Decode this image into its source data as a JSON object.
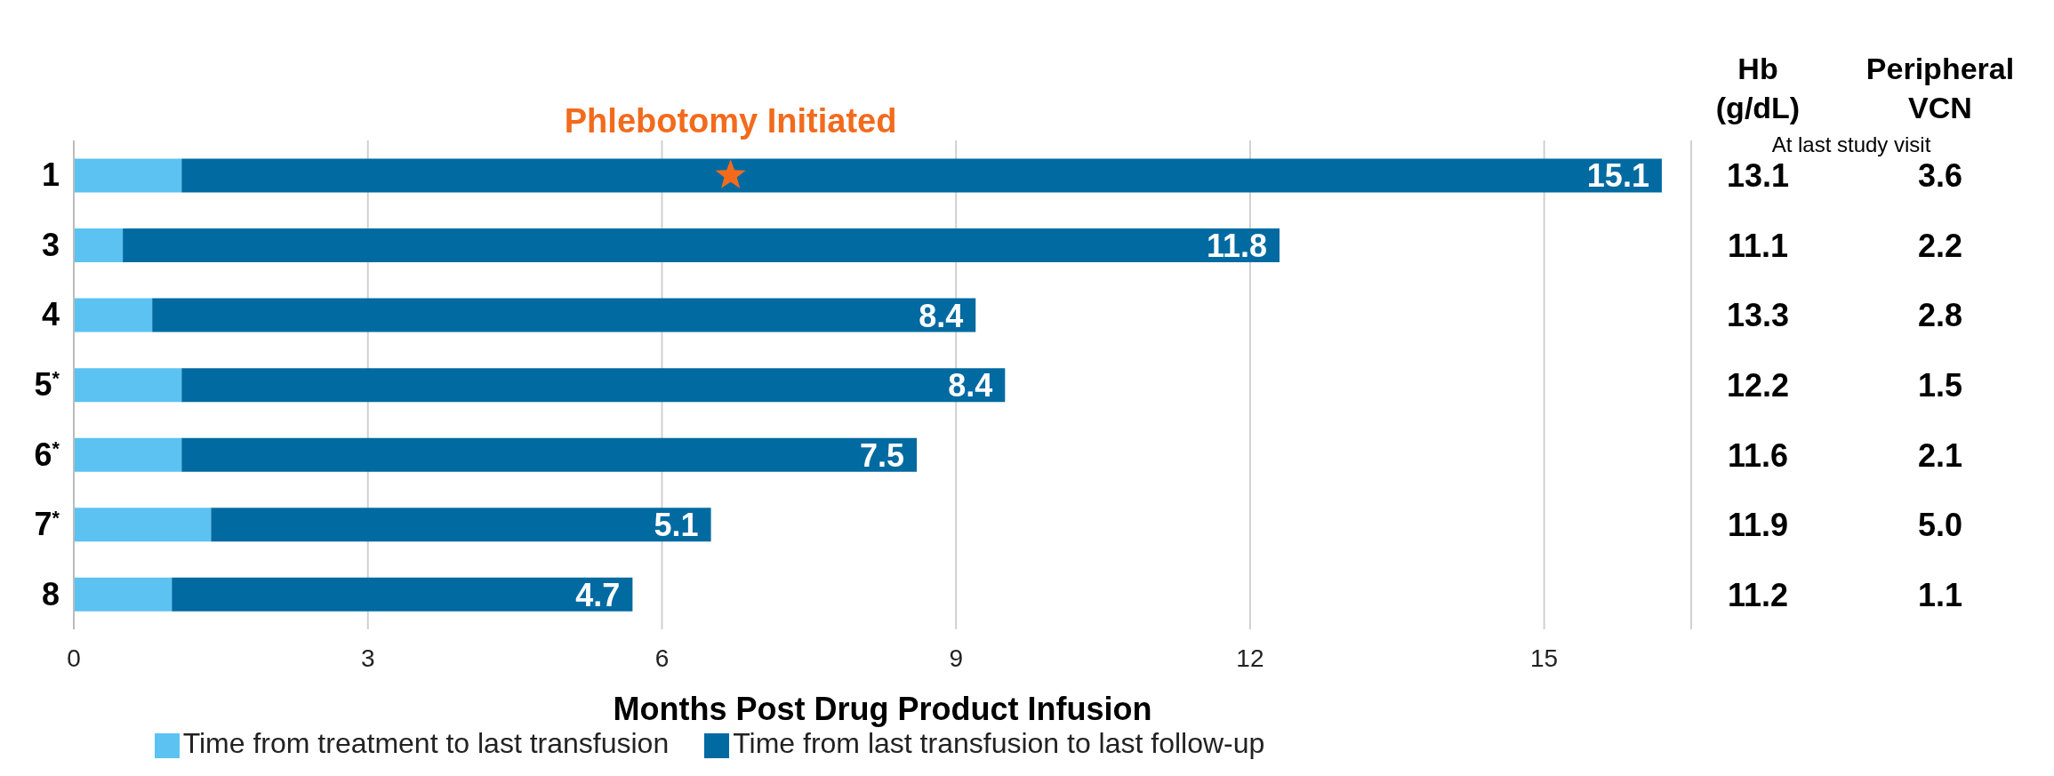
{
  "chart_data": {
    "type": "bar",
    "orientation": "horizontal",
    "stacked": true,
    "categories": [
      "1",
      "3",
      "4",
      "5$^{*}$",
      "6$^{*}$",
      "7$^{*}$",
      "8"
    ],
    "series": [
      {
        "name": "Time from treatment to last transfusion",
        "color": "#5bc2f2",
        "values": [
          1.1,
          0.5,
          0.8,
          1.1,
          1.1,
          1.4,
          1.0
        ]
      },
      {
        "name": "Time from last transfusion to last follow-up",
        "color": "#006aa1",
        "values": [
          15.1,
          11.8,
          8.4,
          8.4,
          7.5,
          5.1,
          4.7
        ],
        "value_labels": [
          "15.1",
          "11.8",
          "8.4",
          "8.4",
          "7.5",
          "5.1",
          "4.7"
        ]
      }
    ],
    "xlim": [
      0,
      16.5
    ],
    "xticks": [
      0,
      3,
      6,
      9,
      12,
      15
    ],
    "xlabel": "Months Post Drug Product Infusion",
    "grid": "x",
    "legend": "bottom",
    "annotations": [
      {
        "text": "Phlebotomy Initiated",
        "x": 6.7,
        "y": "1"
      },
      "Hb (g/dL)",
      "Peripheral VCN",
      "At last study visit",
      "13.1",
      "11.1",
      "13.3",
      "12.2",
      "11.6",
      "11.9",
      "11.2",
      "3.6",
      "2.2",
      "2.8",
      "1.5",
      "2.1",
      "5.0",
      "1.1"
    ]
  }
}
